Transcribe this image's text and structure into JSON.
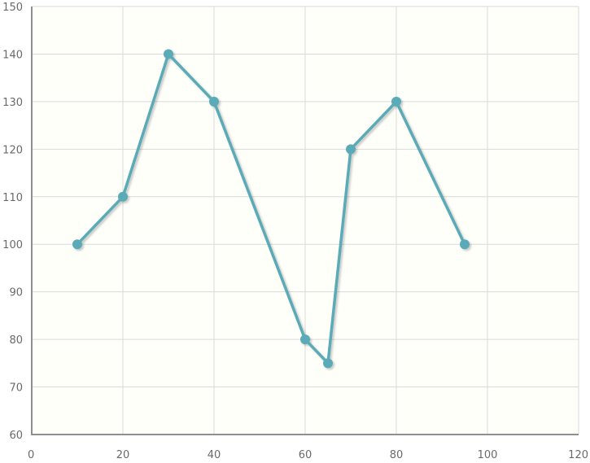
{
  "chart_data": {
    "type": "line",
    "title": "",
    "xlabel": "",
    "ylabel": "",
    "xlim": [
      0,
      120
    ],
    "ylim": [
      60,
      150
    ],
    "x_ticks": [
      0,
      20,
      40,
      60,
      80,
      100,
      120
    ],
    "y_ticks": [
      60,
      70,
      80,
      90,
      100,
      110,
      120,
      130,
      140,
      150
    ],
    "grid": true,
    "legend": "none",
    "series": [
      {
        "x": [
          10,
          20,
          30,
          40,
          60,
          65,
          70,
          80,
          95
        ],
        "y": [
          100,
          110,
          140,
          130,
          80,
          75,
          120,
          130,
          100
        ],
        "color": "#5aaab7"
      }
    ],
    "plot_background": "#fffffa"
  }
}
